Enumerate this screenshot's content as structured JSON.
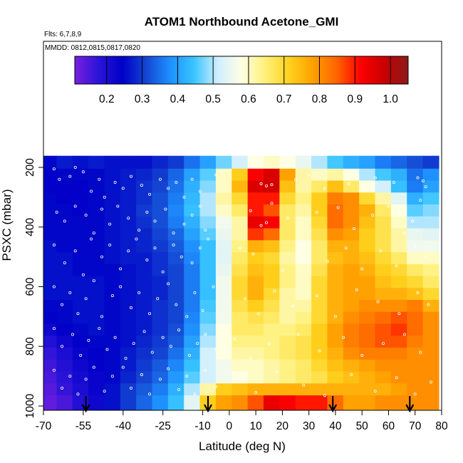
{
  "chart_data": {
    "type": "heatmap",
    "title": "ATOM1 Northbound Acetone_GMI",
    "flights_label": "Flts: 6,7,8,9",
    "mmdd_label": "MMDD: 0812,0815,0817,0820",
    "xlabel": "Latitude (deg N)",
    "ylabel": "PSXC (mbar)",
    "xlim": [
      -70,
      80
    ],
    "ylim": [
      1000,
      100
    ],
    "x_ticks": [
      -70,
      -55,
      -40,
      -25,
      -10,
      0,
      10,
      20,
      30,
      40,
      50,
      60,
      70,
      80
    ],
    "x_tick_labels": [
      "-70",
      "-55",
      "-40",
      "-25",
      "-10",
      "0",
      "10",
      "20",
      "30",
      "40",
      "50",
      "60",
      "70",
      "80"
    ],
    "y_ticks": [
      200,
      400,
      600,
      800,
      1000
    ],
    "y_tick_labels": [
      "200",
      "400",
      "600",
      "800",
      "1000"
    ],
    "colorbar": {
      "range": [
        0.11,
        1.05
      ],
      "ticks": [
        0.2,
        0.3,
        0.4,
        0.5,
        0.6,
        0.7,
        0.8,
        0.9,
        1.0
      ],
      "tick_labels": [
        "0.2",
        "0.3",
        "0.4",
        "0.5",
        "0.6",
        "0.7",
        "0.8",
        "0.9",
        "1.0"
      ],
      "colors": [
        "#7a1fe0",
        "#2a14d8",
        "#0000c8",
        "#1446d2",
        "#1e90ff",
        "#38c4ff",
        "#cfeeff",
        "#ffffe4",
        "#fff07a",
        "#ffd21e",
        "#ffa000",
        "#ff6400",
        "#ff0000",
        "#c80000",
        "#8b1a1a"
      ]
    },
    "arrow_latitudes": [
      -54,
      -8,
      39,
      68
    ],
    "lat_grid": [
      -68,
      -62,
      -56,
      -50,
      -44,
      -38,
      -32,
      -26,
      -20,
      -14,
      -8,
      -2,
      4,
      10,
      16,
      22,
      28,
      34,
      40,
      46,
      52,
      58,
      64,
      70,
      76
    ],
    "pressure_levels": [
      185,
      225,
      265,
      305,
      345,
      385,
      425,
      465,
      505,
      545,
      585,
      625,
      665,
      705,
      745,
      785,
      825,
      865,
      905,
      945,
      985
    ],
    "z": [
      [
        0.25,
        0.27,
        0.26,
        0.27,
        0.26,
        0.26,
        0.26,
        0.28,
        0.3,
        0.35,
        0.4,
        0.47,
        0.52,
        0.58,
        0.6,
        0.58,
        0.55,
        0.5,
        0.45,
        0.42,
        0.4,
        0.36,
        0.34,
        0.32,
        0.3
      ],
      [
        0.24,
        0.25,
        0.25,
        0.25,
        0.26,
        0.27,
        0.28,
        0.3,
        0.34,
        0.4,
        0.46,
        0.6,
        0.72,
        0.92,
        0.96,
        0.78,
        0.62,
        0.6,
        0.62,
        0.58,
        0.5,
        0.45,
        0.42,
        0.35,
        0.38
      ],
      [
        0.24,
        0.24,
        0.24,
        0.25,
        0.26,
        0.27,
        0.29,
        0.31,
        0.35,
        0.42,
        0.48,
        0.6,
        0.75,
        0.96,
        0.97,
        0.74,
        0.62,
        0.66,
        0.74,
        0.66,
        0.58,
        0.52,
        0.44,
        0.36,
        0.4
      ],
      [
        0.25,
        0.24,
        0.24,
        0.25,
        0.26,
        0.27,
        0.29,
        0.32,
        0.36,
        0.43,
        0.5,
        0.62,
        0.7,
        0.9,
        0.9,
        0.7,
        0.64,
        0.72,
        0.82,
        0.8,
        0.7,
        0.62,
        0.54,
        0.42,
        0.45
      ],
      [
        0.25,
        0.25,
        0.24,
        0.25,
        0.26,
        0.27,
        0.3,
        0.32,
        0.37,
        0.44,
        0.5,
        0.6,
        0.66,
        0.9,
        0.86,
        0.66,
        0.62,
        0.72,
        0.84,
        0.8,
        0.76,
        0.66,
        0.58,
        0.46,
        0.48
      ],
      [
        0.25,
        0.25,
        0.25,
        0.25,
        0.26,
        0.27,
        0.29,
        0.32,
        0.36,
        0.42,
        0.48,
        0.56,
        0.62,
        0.94,
        0.92,
        0.66,
        0.6,
        0.7,
        0.84,
        0.8,
        0.74,
        0.68,
        0.6,
        0.5,
        0.5
      ],
      [
        0.25,
        0.25,
        0.25,
        0.25,
        0.26,
        0.27,
        0.28,
        0.31,
        0.34,
        0.4,
        0.46,
        0.55,
        0.62,
        0.88,
        0.84,
        0.66,
        0.6,
        0.68,
        0.8,
        0.78,
        0.72,
        0.68,
        0.62,
        0.55,
        0.54
      ],
      [
        0.26,
        0.25,
        0.25,
        0.25,
        0.26,
        0.27,
        0.28,
        0.3,
        0.33,
        0.38,
        0.44,
        0.54,
        0.64,
        0.76,
        0.74,
        0.64,
        0.58,
        0.66,
        0.76,
        0.76,
        0.72,
        0.68,
        0.62,
        0.56,
        0.56
      ],
      [
        0.26,
        0.26,
        0.25,
        0.25,
        0.26,
        0.27,
        0.27,
        0.29,
        0.32,
        0.37,
        0.44,
        0.54,
        0.66,
        0.72,
        0.7,
        0.62,
        0.58,
        0.66,
        0.74,
        0.76,
        0.74,
        0.7,
        0.66,
        0.6,
        0.6
      ],
      [
        0.26,
        0.26,
        0.25,
        0.25,
        0.25,
        0.26,
        0.27,
        0.29,
        0.31,
        0.36,
        0.44,
        0.55,
        0.68,
        0.74,
        0.72,
        0.64,
        0.6,
        0.68,
        0.76,
        0.78,
        0.76,
        0.72,
        0.7,
        0.66,
        0.64
      ],
      [
        0.26,
        0.26,
        0.26,
        0.26,
        0.25,
        0.26,
        0.27,
        0.28,
        0.31,
        0.36,
        0.44,
        0.56,
        0.7,
        0.76,
        0.72,
        0.64,
        0.6,
        0.7,
        0.76,
        0.78,
        0.78,
        0.74,
        0.72,
        0.7,
        0.66
      ],
      [
        0.26,
        0.26,
        0.26,
        0.26,
        0.25,
        0.26,
        0.27,
        0.28,
        0.31,
        0.36,
        0.44,
        0.56,
        0.7,
        0.76,
        0.7,
        0.62,
        0.6,
        0.7,
        0.76,
        0.78,
        0.78,
        0.76,
        0.76,
        0.74,
        0.7
      ],
      [
        0.25,
        0.25,
        0.26,
        0.26,
        0.25,
        0.26,
        0.27,
        0.29,
        0.31,
        0.36,
        0.45,
        0.56,
        0.68,
        0.72,
        0.68,
        0.62,
        0.62,
        0.7,
        0.76,
        0.78,
        0.8,
        0.8,
        0.8,
        0.82,
        0.76
      ],
      [
        0.24,
        0.25,
        0.26,
        0.26,
        0.25,
        0.26,
        0.27,
        0.29,
        0.31,
        0.37,
        0.46,
        0.56,
        0.66,
        0.68,
        0.66,
        0.62,
        0.64,
        0.7,
        0.76,
        0.8,
        0.82,
        0.84,
        0.86,
        0.84,
        0.8
      ],
      [
        0.22,
        0.24,
        0.25,
        0.26,
        0.25,
        0.26,
        0.27,
        0.29,
        0.32,
        0.38,
        0.48,
        0.58,
        0.66,
        0.66,
        0.64,
        0.64,
        0.66,
        0.72,
        0.78,
        0.82,
        0.84,
        0.86,
        0.88,
        0.84,
        0.8
      ],
      [
        0.19,
        0.22,
        0.24,
        0.25,
        0.25,
        0.26,
        0.28,
        0.3,
        0.33,
        0.4,
        0.5,
        0.58,
        0.64,
        0.64,
        0.64,
        0.66,
        0.68,
        0.72,
        0.78,
        0.82,
        0.84,
        0.86,
        0.86,
        0.82,
        0.8
      ],
      [
        0.17,
        0.2,
        0.23,
        0.24,
        0.25,
        0.27,
        0.29,
        0.31,
        0.35,
        0.42,
        0.52,
        0.58,
        0.62,
        0.62,
        0.64,
        0.66,
        0.68,
        0.72,
        0.76,
        0.8,
        0.82,
        0.82,
        0.82,
        0.8,
        0.8
      ],
      [
        0.16,
        0.19,
        0.22,
        0.24,
        0.25,
        0.27,
        0.3,
        0.33,
        0.37,
        0.44,
        0.52,
        0.56,
        0.6,
        0.6,
        0.62,
        0.64,
        0.66,
        0.7,
        0.74,
        0.76,
        0.78,
        0.8,
        0.8,
        0.8,
        0.8
      ],
      [
        0.15,
        0.18,
        0.21,
        0.23,
        0.25,
        0.28,
        0.31,
        0.34,
        0.39,
        0.46,
        0.52,
        0.56,
        0.58,
        0.6,
        0.62,
        0.64,
        0.66,
        0.68,
        0.72,
        0.74,
        0.76,
        0.78,
        0.8,
        0.8,
        0.8
      ],
      [
        0.14,
        0.17,
        0.2,
        0.23,
        0.26,
        0.3,
        0.33,
        0.36,
        0.42,
        0.5,
        0.62,
        0.72,
        0.74,
        0.76,
        0.76,
        0.76,
        0.76,
        0.76,
        0.76,
        0.76,
        0.76,
        0.76,
        0.78,
        0.8,
        0.8
      ],
      [
        0.13,
        0.15,
        0.19,
        0.22,
        0.26,
        0.3,
        0.34,
        0.38,
        0.44,
        0.54,
        0.72,
        0.78,
        0.8,
        0.86,
        0.94,
        0.92,
        0.9,
        0.9,
        0.84,
        0.78,
        0.78,
        0.8,
        0.8,
        0.8,
        0.8
      ]
    ],
    "sample_points": [
      [
        -66,
        205
      ],
      [
        -64,
        240
      ],
      [
        -60,
        230
      ],
      [
        -58,
        200
      ],
      [
        -55,
        215
      ],
      [
        -52,
        280
      ],
      [
        -49,
        240
      ],
      [
        -47,
        300
      ],
      [
        -43,
        250
      ],
      [
        -40,
        270
      ],
      [
        -37,
        230
      ],
      [
        -33,
        260
      ],
      [
        -30,
        290
      ],
      [
        -26,
        240
      ],
      [
        -23,
        270
      ],
      [
        -20,
        250
      ],
      [
        -17,
        300
      ],
      [
        -14,
        240
      ],
      [
        -11,
        280
      ],
      [
        -5,
        225
      ],
      [
        -3,
        215
      ],
      [
        12,
        255
      ],
      [
        14,
        262
      ],
      [
        16,
        258
      ],
      [
        25,
        240
      ],
      [
        30,
        225
      ],
      [
        36,
        270
      ],
      [
        45,
        255
      ],
      [
        55,
        235
      ],
      [
        62,
        250
      ],
      [
        71,
        235
      ],
      [
        73,
        245
      ],
      [
        74,
        265
      ],
      [
        -65,
        350
      ],
      [
        -62,
        380
      ],
      [
        -58,
        330
      ],
      [
        -54,
        360
      ],
      [
        -51,
        420
      ],
      [
        -48,
        340
      ],
      [
        -45,
        390
      ],
      [
        -42,
        330
      ],
      [
        -38,
        370
      ],
      [
        -34,
        410
      ],
      [
        -31,
        350
      ],
      [
        -28,
        380
      ],
      [
        -24,
        340
      ],
      [
        -21,
        420
      ],
      [
        -17,
        390
      ],
      [
        -14,
        360
      ],
      [
        -11,
        330
      ],
      [
        -9,
        410
      ],
      [
        8,
        345
      ],
      [
        12,
        395
      ],
      [
        14,
        385
      ],
      [
        16,
        320
      ],
      [
        22,
        370
      ],
      [
        33,
        350
      ],
      [
        41,
        335
      ],
      [
        47,
        405
      ],
      [
        54,
        360
      ],
      [
        60,
        330
      ],
      [
        66,
        420
      ],
      [
        69,
        380
      ],
      [
        72,
        310
      ],
      [
        -66,
        460
      ],
      [
        -62,
        520
      ],
      [
        -58,
        480
      ],
      [
        -55,
        560
      ],
      [
        -52,
        440
      ],
      [
        -48,
        500
      ],
      [
        -45,
        460
      ],
      [
        -41,
        540
      ],
      [
        -38,
        480
      ],
      [
        -35,
        440
      ],
      [
        -31,
        510
      ],
      [
        -28,
        470
      ],
      [
        -25,
        550
      ],
      [
        -21,
        460
      ],
      [
        -18,
        500
      ],
      [
        -14,
        520
      ],
      [
        -11,
        470
      ],
      [
        -8,
        440
      ],
      [
        4,
        470
      ],
      [
        9,
        490
      ],
      [
        20,
        545
      ],
      [
        28,
        455
      ],
      [
        37,
        515
      ],
      [
        44,
        470
      ],
      [
        50,
        540
      ],
      [
        57,
        480
      ],
      [
        63,
        530
      ],
      [
        70,
        465
      ],
      [
        74,
        500
      ],
      [
        -66,
        600
      ],
      [
        -63,
        660
      ],
      [
        -60,
        620
      ],
      [
        -57,
        690
      ],
      [
        -54,
        640
      ],
      [
        -51,
        580
      ],
      [
        -48,
        700
      ],
      [
        -44,
        630
      ],
      [
        -41,
        600
      ],
      [
        -37,
        670
      ],
      [
        -34,
        620
      ],
      [
        -30,
        690
      ],
      [
        -27,
        640
      ],
      [
        -23,
        590
      ],
      [
        -20,
        660
      ],
      [
        -16,
        700
      ],
      [
        -13,
        620
      ],
      [
        -10,
        680
      ],
      [
        -6,
        600
      ],
      [
        6,
        640
      ],
      [
        11,
        690
      ],
      [
        17,
        615
      ],
      [
        24,
        665
      ],
      [
        33,
        630
      ],
      [
        40,
        700
      ],
      [
        48,
        610
      ],
      [
        56,
        650
      ],
      [
        64,
        690
      ],
      [
        71,
        620
      ],
      [
        75,
        660
      ],
      [
        -66,
        740
      ],
      [
        -63,
        800
      ],
      [
        -59,
        760
      ],
      [
        -56,
        830
      ],
      [
        -53,
        780
      ],
      [
        -49,
        740
      ],
      [
        -46,
        810
      ],
      [
        -43,
        770
      ],
      [
        -39,
        840
      ],
      [
        -36,
        790
      ],
      [
        -32,
        750
      ],
      [
        -29,
        820
      ],
      [
        -25,
        770
      ],
      [
        -22,
        800
      ],
      [
        -19,
        745
      ],
      [
        -15,
        830
      ],
      [
        -12,
        790
      ],
      [
        -9,
        760
      ],
      [
        -5,
        810
      ],
      [
        2,
        775
      ],
      [
        8,
        840
      ],
      [
        15,
        790
      ],
      [
        26,
        760
      ],
      [
        34,
        815
      ],
      [
        43,
        770
      ],
      [
        50,
        830
      ],
      [
        58,
        790
      ],
      [
        66,
        760
      ],
      [
        72,
        820
      ],
      [
        -66,
        880
      ],
      [
        -63,
        940
      ],
      [
        -60,
        900
      ],
      [
        -57,
        960
      ],
      [
        -54,
        910
      ],
      [
        -51,
        870
      ],
      [
        -47,
        950
      ],
      [
        -44,
        900
      ],
      [
        -40,
        870
      ],
      [
        -37,
        940
      ],
      [
        -33,
        895
      ],
      [
        -30,
        960
      ],
      [
        -26,
        910
      ],
      [
        -23,
        875
      ],
      [
        -19,
        945
      ],
      [
        -16,
        900
      ],
      [
        -13,
        960
      ],
      [
        -9,
        880
      ],
      [
        -5,
        935
      ],
      [
        3,
        905
      ],
      [
        10,
        955
      ],
      [
        18,
        885
      ],
      [
        28,
        930
      ],
      [
        36,
        965
      ],
      [
        46,
        895
      ],
      [
        55,
        950
      ],
      [
        63,
        905
      ],
      [
        70,
        960
      ],
      [
        76,
        920
      ]
    ]
  }
}
